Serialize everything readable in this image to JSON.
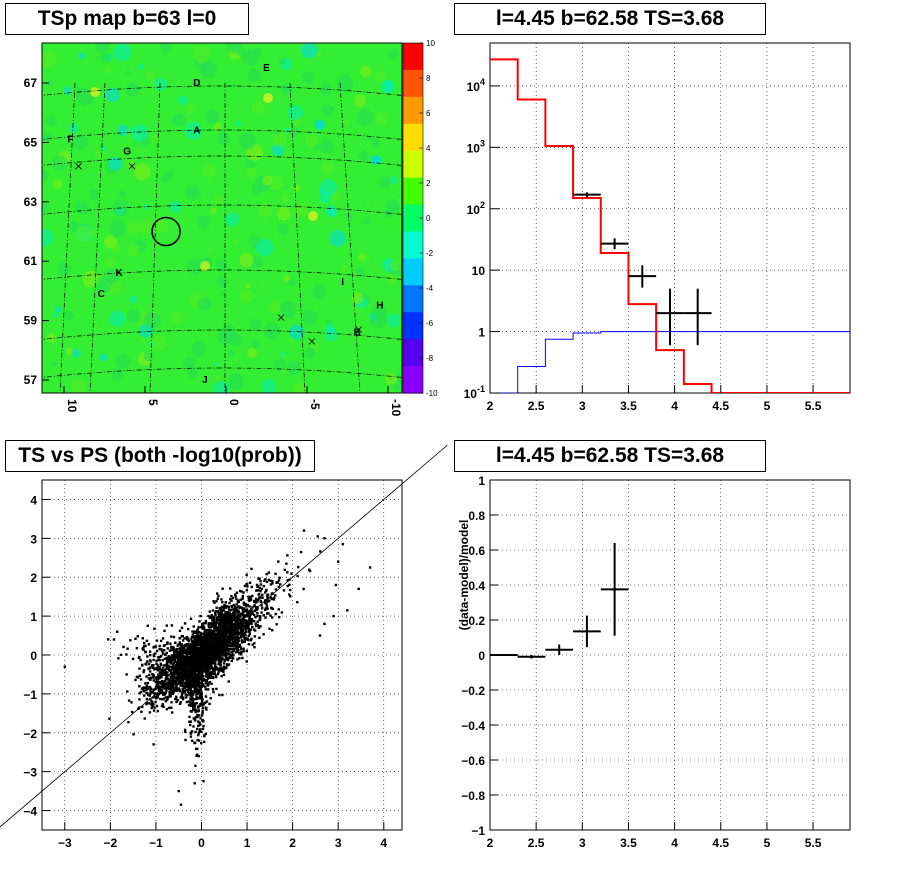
{
  "chart_data": [
    {
      "type": "heatmap",
      "title": "TSp map b=63 l=0",
      "xticks": [
        "10",
        "5",
        "0",
        "-5",
        "-10"
      ],
      "yticks": [
        "57",
        "59",
        "61",
        "63",
        "65",
        "67"
      ],
      "colorbar_ticks": [
        "10",
        "8",
        "6",
        "4",
        "2",
        "0",
        "-2",
        "-4",
        "-6",
        "-8",
        "-10"
      ],
      "zlim": [
        -10,
        10
      ],
      "labels": [
        {
          "text": "D",
          "l": 1.8,
          "b": 66.9
        },
        {
          "text": "E",
          "l": -2.5,
          "b": 67.4
        },
        {
          "text": "A",
          "l": 1.8,
          "b": 65.3
        },
        {
          "text": "F",
          "l": 9.6,
          "b": 65.0
        },
        {
          "text": "G",
          "l": 6.1,
          "b": 64.6
        },
        {
          "text": "K",
          "l": 6.6,
          "b": 60.5
        },
        {
          "text": "C",
          "l": 7.7,
          "b": 59.8
        },
        {
          "text": "I",
          "l": -7.2,
          "b": 60.2
        },
        {
          "text": "H",
          "l": -9.5,
          "b": 59.4
        },
        {
          "text": "B",
          "l": -8.1,
          "b": 58.5
        },
        {
          "text": "J",
          "l": 1.3,
          "b": 56.9
        }
      ],
      "crosses": [
        {
          "l": 9.1,
          "b": 64.2
        },
        {
          "l": 5.8,
          "b": 64.2
        },
        {
          "l": -3.4,
          "b": 59.1
        },
        {
          "l": -5.3,
          "b": 58.3
        },
        {
          "l": -8.2,
          "b": 58.7
        }
      ],
      "circle": {
        "l": 3.7,
        "b": 62.0
      }
    },
    {
      "type": "line",
      "title": "l=4.45 b=62.58 TS=3.68",
      "yscale": "log",
      "xlim": [
        2,
        5.9
      ],
      "ylim": [
        0.1,
        50000
      ],
      "xticks": [
        "2",
        "2.5",
        "3",
        "3.5",
        "4",
        "4.5",
        "5",
        "5.5"
      ],
      "yticks": [
        "10^-1",
        "1",
        "10",
        "10^2",
        "10^3",
        "10^4"
      ],
      "series": [
        {
          "color": "#ff0000",
          "step_edges": [
            2.0,
            2.3,
            2.6,
            2.9,
            3.2,
            3.5,
            3.8,
            4.1,
            4.4,
            5.9
          ],
          "values": [
            27000,
            6000,
            1050,
            150,
            19,
            2.8,
            0.5,
            0.14,
            0.1
          ]
        },
        {
          "color": "#0000ff",
          "step_edges": [
            2.0,
            2.3,
            2.6,
            2.9,
            3.2,
            5.9
          ],
          "values": [
            0.1,
            0.27,
            0.75,
            0.95,
            1.0
          ]
        },
        {
          "color": "#000000",
          "points": [
            {
              "x": 3.05,
              "y": 170,
              "xerr": 0.15,
              "ylo": 155,
              "yhi": 185
            },
            {
              "x": 3.35,
              "y": 27,
              "xerr": 0.15,
              "ylo": 22,
              "yhi": 33
            },
            {
              "x": 3.65,
              "y": 8,
              "xerr": 0.15,
              "ylo": 5.2,
              "yhi": 12
            },
            {
              "x": 3.95,
              "y": 2,
              "xerr": 0.15,
              "ylo": 0.6,
              "yhi": 5
            },
            {
              "x": 4.25,
              "y": 2,
              "xerr": 0.15,
              "ylo": 0.6,
              "yhi": 5
            }
          ]
        }
      ]
    },
    {
      "type": "scatter",
      "title": "TS vs PS (both -log10(prob))",
      "xlim": [
        -3.5,
        4.4
      ],
      "ylim": [
        -4.5,
        4.5
      ],
      "xticks": [
        "−3",
        "−2",
        "−1",
        "0",
        "1",
        "2",
        "3",
        "4"
      ],
      "yticks": [
        "4",
        "3",
        "2",
        "1",
        "0",
        "−1",
        "−2",
        "−3",
        "−4"
      ],
      "reference_line": "y = x",
      "seed_points": [
        [
          -3.0,
          -0.3
        ],
        [
          3.7,
          2.25
        ],
        [
          3.45,
          1.7
        ],
        [
          3.1,
          2.85
        ],
        [
          2.7,
          3.0
        ],
        [
          2.55,
          3.05
        ],
        [
          2.25,
          3.2
        ],
        [
          -1.05,
          -2.3
        ],
        [
          -0.5,
          -3.5
        ],
        [
          -0.45,
          -3.85
        ],
        [
          -0.15,
          -3.3
        ],
        [
          2.6,
          0.5
        ],
        [
          2.7,
          0.8
        ],
        [
          3.2,
          1.15
        ],
        [
          -2.05,
          0.4
        ],
        [
          -1.85,
          0.6
        ],
        [
          2.9,
          1.0
        ],
        [
          3.0,
          2.4
        ],
        [
          -1.5,
          -0.1
        ],
        [
          2.95,
          1.8
        ]
      ]
    },
    {
      "type": "scatter",
      "title": "l=4.45 b=62.58 TS=3.68",
      "ylabel": "(data-model)/model",
      "xlim": [
        2,
        5.9
      ],
      "ylim": [
        -1,
        1
      ],
      "xticks": [
        "2",
        "2.5",
        "3",
        "3.5",
        "4",
        "4.5",
        "5",
        "5.5"
      ],
      "yticks": [
        "1",
        "0.8",
        "0.6",
        "0.4",
        "0.2",
        "0",
        "−0.2",
        "−0.4",
        "−0.6",
        "−0.8",
        "−1"
      ],
      "points": [
        {
          "x": 2.15,
          "y": 0.0,
          "xerr": 0.15,
          "yerr": 0.003
        },
        {
          "x": 2.45,
          "y": -0.01,
          "xerr": 0.15,
          "yerr": 0.01
        },
        {
          "x": 2.75,
          "y": 0.03,
          "xerr": 0.15,
          "yerr": 0.03
        },
        {
          "x": 3.05,
          "y": 0.135,
          "xerr": 0.15,
          "yerr": 0.09
        },
        {
          "x": 3.35,
          "y": 0.375,
          "xerr": 0.15,
          "yerr": 0.265
        }
      ]
    }
  ]
}
